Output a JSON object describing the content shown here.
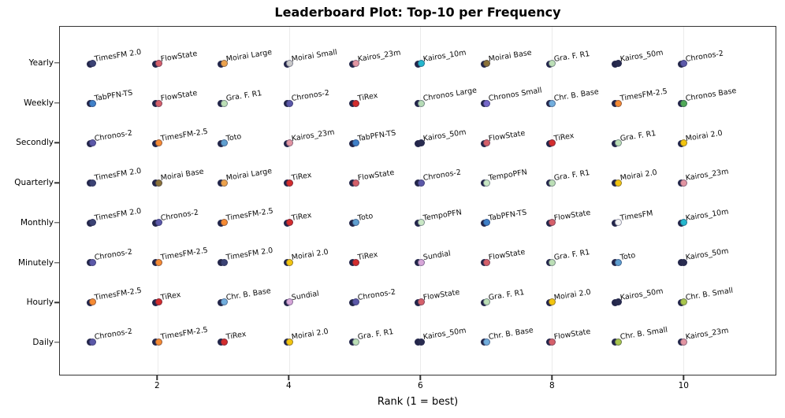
{
  "title": "Leaderboard Plot: Top-10 per Frequency",
  "chart_data": {
    "type": "scatter",
    "title": "Leaderboard Plot: Top-10 per Frequency",
    "xlabel": "Rank (1 = best)",
    "ylabel": "",
    "x_ticks": [
      2,
      4,
      6,
      8,
      10
    ],
    "xlim": [
      0.51,
      11.41
    ],
    "grid": "vertical-light",
    "legend": "none",
    "y_categories": [
      "Yearly",
      "Weekly",
      "Secondly",
      "Quarterly",
      "Monthly",
      "Minutely",
      "Hourly",
      "Daily"
    ],
    "marker_edge_color": "#23264a",
    "model_colors": {
      "TimesFM 2.0": "#3b4274",
      "TimesFM-2.5": "#f68b33",
      "TimesFM": "#f4f4f4",
      "FlowState": "#d5606a",
      "TiRex": "#d32d2d",
      "Moirai Large": "#eca24c",
      "Moirai Small": "#c9c9c9",
      "Moirai Base": "#8b7239",
      "Moirai 2.0": "#f3c50f",
      "Kairos_23m": "#e295a2",
      "Kairos_10m": "#25b7cd",
      "Kairos_50m": "#292c50",
      "Chronos-2": "#5b58a8",
      "Chronos Large": "#b6dcb6",
      "Chronos Small": "#7668c9",
      "Chronos Base": "#4fa956",
      "Chr. B. Base": "#72aedd",
      "Chr. B. Small": "#a9c64d",
      "TabPFN-TS": "#3f80c8",
      "Gra. F. R1": "#bcdfb6",
      "TempoPFN": "#c9e7c5",
      "Toto": "#5f9fd0",
      "Sundial": "#d7a6d8"
    },
    "rows": [
      {
        "frequency": "Yearly",
        "ranking": [
          "TimesFM 2.0",
          "FlowState",
          "Moirai Large",
          "Moirai Small",
          "Kairos_23m",
          "Kairos_10m",
          "Moirai Base",
          "Gra. F. R1",
          "Kairos_50m",
          "Chronos-2"
        ]
      },
      {
        "frequency": "Weekly",
        "ranking": [
          "TabPFN-TS",
          "FlowState",
          "Gra. F. R1",
          "Chronos-2",
          "TiRex",
          "Chronos Large",
          "Chronos Small",
          "Chr. B. Base",
          "TimesFM-2.5",
          "Chronos Base"
        ]
      },
      {
        "frequency": "Secondly",
        "ranking": [
          "Chronos-2",
          "TimesFM-2.5",
          "Toto",
          "Kairos_23m",
          "TabPFN-TS",
          "Kairos_50m",
          "FlowState",
          "TiRex",
          "Gra. F. R1",
          "Moirai 2.0"
        ]
      },
      {
        "frequency": "Quarterly",
        "ranking": [
          "TimesFM 2.0",
          "Moirai Base",
          "Moirai Large",
          "TiRex",
          "FlowState",
          "Chronos-2",
          "TempoPFN",
          "Gra. F. R1",
          "Moirai 2.0",
          "Kairos_23m"
        ]
      },
      {
        "frequency": "Monthly",
        "ranking": [
          "TimesFM 2.0",
          "Chronos-2",
          "TimesFM-2.5",
          "TiRex",
          "Toto",
          "TempoPFN",
          "TabPFN-TS",
          "FlowState",
          "TimesFM",
          "Kairos_10m"
        ]
      },
      {
        "frequency": "Minutely",
        "ranking": [
          "Chronos-2",
          "TimesFM-2.5",
          "TimesFM 2.0",
          "Moirai 2.0",
          "TiRex",
          "Sundial",
          "FlowState",
          "Gra. F. R1",
          "Toto",
          "Kairos_50m"
        ]
      },
      {
        "frequency": "Hourly",
        "ranking": [
          "TimesFM-2.5",
          "TiRex",
          "Chr. B. Base",
          "Sundial",
          "Chronos-2",
          "FlowState",
          "Gra. F. R1",
          "Moirai 2.0",
          "Kairos_50m",
          "Chr. B. Small"
        ]
      },
      {
        "frequency": "Daily",
        "ranking": [
          "Chronos-2",
          "TimesFM-2.5",
          "TiRex",
          "Moirai 2.0",
          "Gra. F. R1",
          "Kairos_50m",
          "Chr. B. Base",
          "FlowState",
          "Chr. B. Small",
          "Kairos_23m"
        ]
      }
    ]
  }
}
